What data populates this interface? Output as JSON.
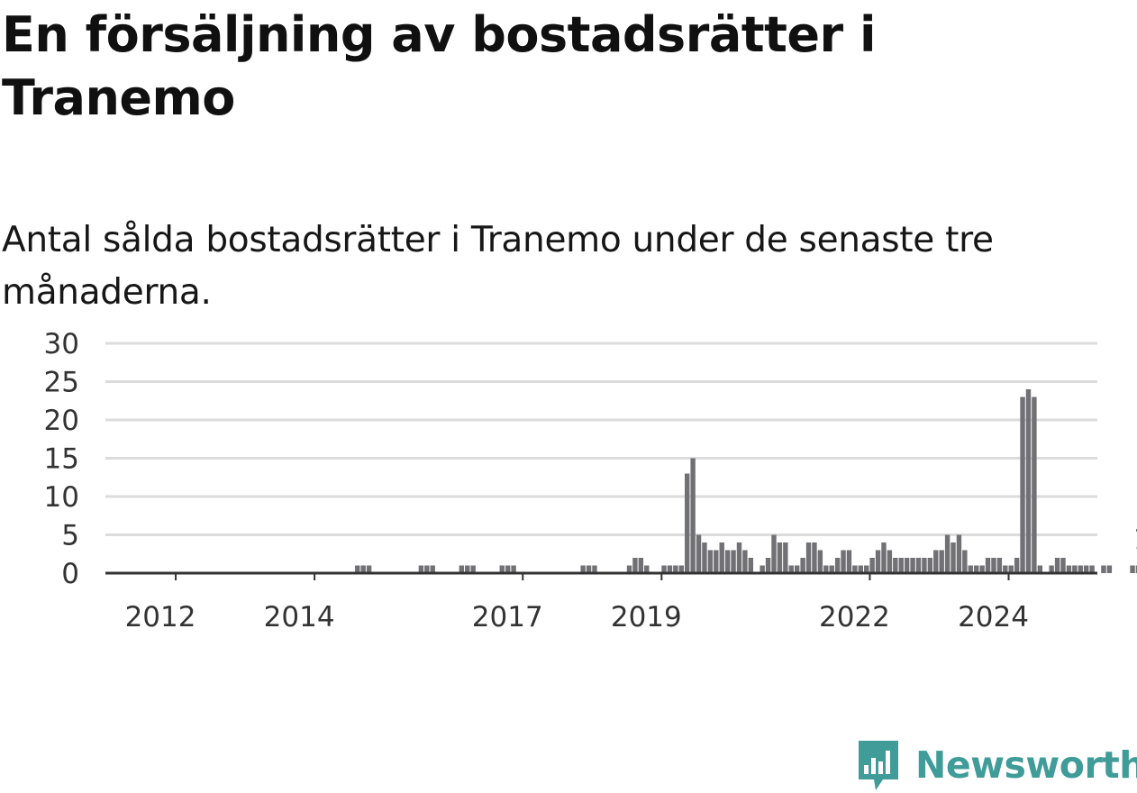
{
  "title": "En försäljning av bostadsrätter i Tranemo",
  "subtitle": "Antal sålda bostadsrätter i Tranemo under de senaste tre månaderna.",
  "logo": {
    "name": "Newsworthy",
    "icon": "newsworthy-chart-icon",
    "color": "#3f9c98"
  },
  "chart_data": {
    "type": "bar",
    "title": "",
    "xlabel": "",
    "ylabel": "",
    "ylim": [
      0,
      30
    ],
    "y_ticks": [
      0,
      5,
      10,
      15,
      20,
      25,
      30
    ],
    "x_ticks": [
      "2012",
      "2014",
      "2017",
      "2019",
      "2022",
      "2024"
    ],
    "grid": true,
    "bar_color": "#707075",
    "highlight_color": "#2a9a8e",
    "highlight_label": "1",
    "start": "2011-01",
    "end": "2024-12",
    "values": [
      0,
      0,
      0,
      0,
      0,
      0,
      0,
      0,
      0,
      0,
      0,
      0,
      0,
      0,
      0,
      0,
      0,
      0,
      0,
      0,
      0,
      0,
      0,
      0,
      0,
      0,
      0,
      0,
      0,
      0,
      0,
      0,
      0,
      0,
      0,
      0,
      0,
      0,
      0,
      0,
      0,
      0,
      0,
      1,
      1,
      1,
      0,
      0,
      0,
      0,
      0,
      0,
      0,
      0,
      1,
      1,
      1,
      0,
      0,
      0,
      0,
      1,
      1,
      1,
      0,
      0,
      0,
      0,
      1,
      1,
      1,
      0,
      0,
      0,
      0,
      0,
      0,
      0,
      0,
      0,
      0,
      0,
      1,
      1,
      1,
      0,
      0,
      0,
      0,
      0,
      1,
      2,
      2,
      1,
      0,
      0,
      1,
      1,
      1,
      1,
      13,
      15,
      5,
      4,
      3,
      3,
      4,
      3,
      3,
      4,
      3,
      2,
      0,
      1,
      2,
      5,
      4,
      4,
      1,
      1,
      2,
      4,
      4,
      3,
      1,
      1,
      2,
      3,
      3,
      1,
      1,
      1,
      2,
      3,
      4,
      3,
      2,
      2,
      2,
      2,
      2,
      2,
      2,
      3,
      3,
      5,
      4,
      5,
      3,
      1,
      1,
      1,
      2,
      2,
      2,
      1,
      1,
      2,
      23,
      24,
      23,
      1,
      0,
      1,
      2,
      2,
      1,
      1,
      1,
      1,
      1,
      0,
      1,
      1,
      0,
      0,
      0,
      1,
      1,
      1
    ]
  }
}
